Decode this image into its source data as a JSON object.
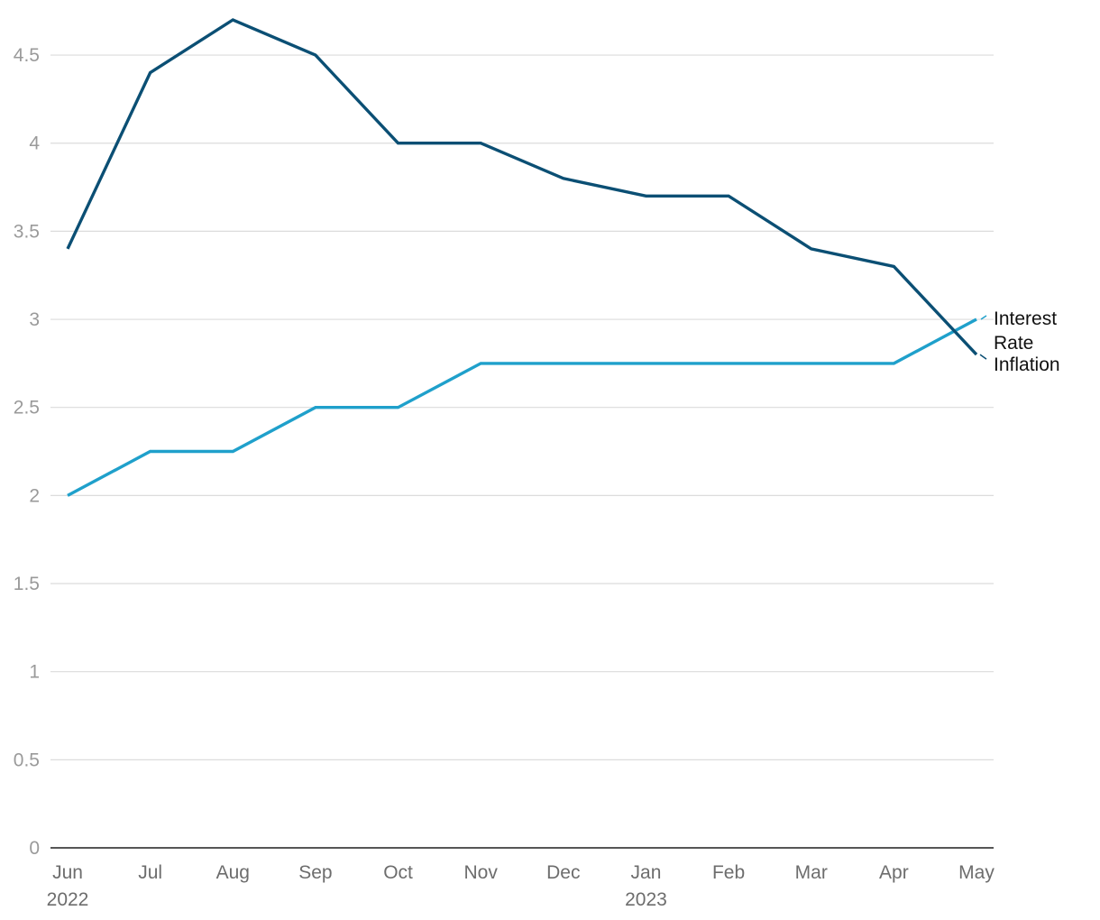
{
  "chart_data": {
    "type": "line",
    "categories": [
      "Jun",
      "Jul",
      "Aug",
      "Sep",
      "Oct",
      "Nov",
      "Dec",
      "Jan",
      "Feb",
      "Mar",
      "Apr",
      "May"
    ],
    "year_labels": [
      "2022",
      "",
      "",
      "",
      "",
      "",
      "",
      "2023",
      "",
      "",
      "",
      ""
    ],
    "series": [
      {
        "name": "Inflation",
        "color": "#0b4f74",
        "values": [
          3.4,
          4.4,
          4.7,
          4.5,
          4.0,
          4.0,
          3.8,
          3.7,
          3.7,
          3.4,
          3.3,
          2.8
        ]
      },
      {
        "name": "Interest Rate",
        "color": "#1fa0cb",
        "values": [
          2.0,
          2.25,
          2.25,
          2.5,
          2.5,
          2.75,
          2.75,
          2.75,
          2.75,
          2.75,
          2.75,
          3.0
        ]
      }
    ],
    "y_ticks": [
      "0",
      "0.5",
      "1",
      "1.5",
      "2",
      "2.5",
      "3",
      "3.5",
      "4",
      "4.5"
    ],
    "ylim": [
      0,
      4.8
    ],
    "grid": true,
    "legend": "inline-right"
  }
}
